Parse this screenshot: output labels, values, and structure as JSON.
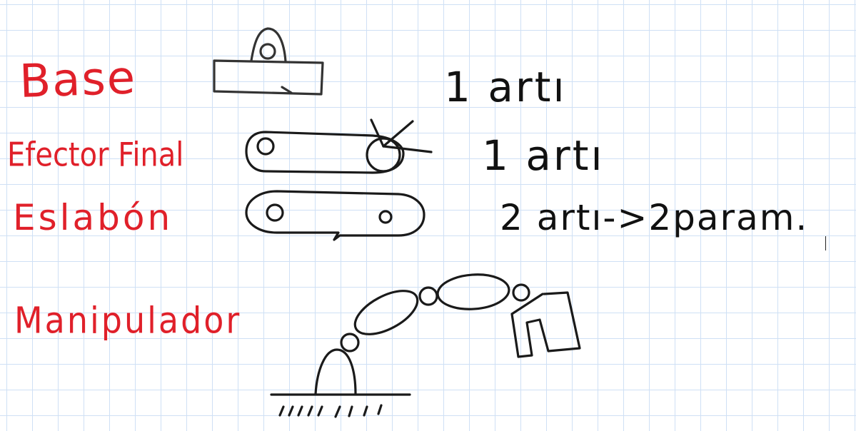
{
  "labels": {
    "base": "Base",
    "efector_final": "Efector Final",
    "eslabon": "Eslabón",
    "manipulador": "Manipulador"
  },
  "notes": {
    "base_note": "1 artı",
    "efector_note": "1 artı",
    "eslabon_note": "2 artı->2param."
  },
  "colors": {
    "label_color": "#e0202a",
    "ink_color": "#111111",
    "grid_color": "#cfe0f5"
  }
}
